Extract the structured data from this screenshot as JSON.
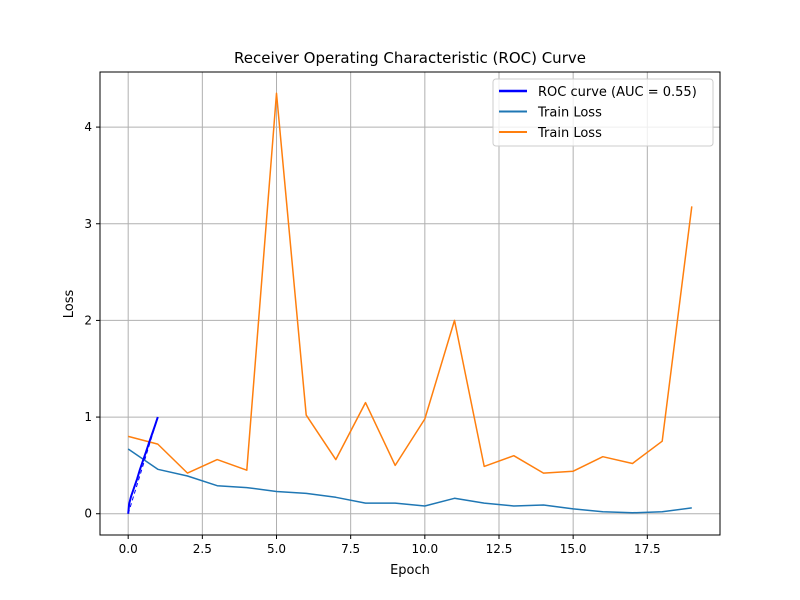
{
  "chart_data": {
    "type": "line",
    "title": "Receiver Operating Characteristic (ROC) Curve",
    "xlabel": "Epoch",
    "ylabel": "Loss",
    "xlim": [
      -0.95,
      19.95
    ],
    "ylim": [
      -0.22,
      4.57
    ],
    "xticks": [
      0,
      2.5,
      5,
      7.5,
      10,
      12.5,
      15,
      17.5
    ],
    "xtick_labels": [
      "0.0",
      "2.5",
      "5.0",
      "7.5",
      "10.0",
      "12.5",
      "15.0",
      "17.5"
    ],
    "yticks": [
      0,
      1,
      2,
      3,
      4
    ],
    "ytick_labels": [
      "0",
      "1",
      "2",
      "3",
      "4"
    ],
    "grid": true,
    "legend_position": "top-right",
    "series": [
      {
        "name": "ROC curve (AUC = 0.55)",
        "color": "#0000ff",
        "x": [
          0.0,
          0.03,
          0.1,
          0.2,
          0.3,
          0.4,
          0.5,
          0.6,
          0.7,
          0.8,
          0.9,
          1.0
        ],
        "y": [
          0.0,
          0.1,
          0.18,
          0.27,
          0.36,
          0.46,
          0.55,
          0.64,
          0.73,
          0.82,
          0.91,
          1.0
        ]
      },
      {
        "name": "Train Loss",
        "color": "#1f77b4",
        "x": [
          0,
          1,
          2,
          3,
          4,
          5,
          6,
          7,
          8,
          9,
          10,
          11,
          12,
          13,
          14,
          15,
          16,
          17,
          18,
          19
        ],
        "y": [
          0.67,
          0.46,
          0.39,
          0.29,
          0.27,
          0.23,
          0.21,
          0.17,
          0.11,
          0.11,
          0.08,
          0.16,
          0.11,
          0.08,
          0.09,
          0.05,
          0.02,
          0.01,
          0.02,
          0.06
        ]
      },
      {
        "name": "Train Loss",
        "color": "#ff7f0e",
        "x": [
          0,
          1,
          2,
          3,
          4,
          5,
          6,
          7,
          8,
          9,
          10,
          11,
          12,
          13,
          14,
          15,
          16,
          17,
          18,
          19
        ],
        "y": [
          0.8,
          0.72,
          0.42,
          0.56,
          0.45,
          4.35,
          1.02,
          0.56,
          1.15,
          0.5,
          0.98,
          2.0,
          0.49,
          0.6,
          0.42,
          0.44,
          0.59,
          0.52,
          0.75,
          3.18
        ]
      }
    ],
    "diagonal_reference": {
      "color": "#0000ff",
      "x": [
        0,
        1
      ],
      "y": [
        0,
        1
      ]
    }
  }
}
